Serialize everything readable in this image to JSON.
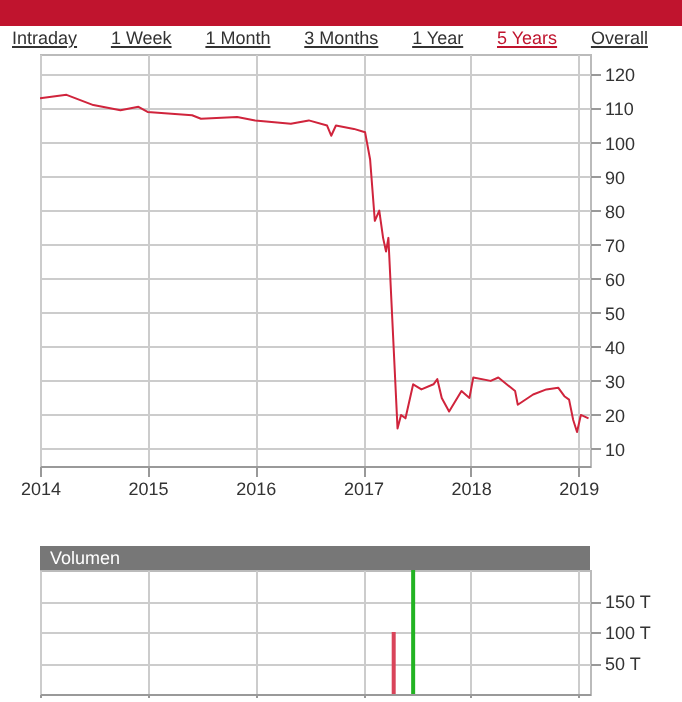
{
  "chart_data": [
    {
      "type": "line",
      "annotations": [
        "Intraday",
        "1 Week",
        "1 Month",
        "3 Months",
        "1 Year",
        "5 Years",
        "Overall"
      ],
      "x": [
        "2014-01-01",
        "2014-04-01",
        "2014-07-01",
        "2014-10-01",
        "2014-12-01",
        "2015-01-01",
        "2015-06-01",
        "2015-07-01",
        "2015-11-01",
        "2016-01-01",
        "2016-05-01",
        "2016-07-01",
        "2016-09-01",
        "2016-09-15",
        "2016-10-01",
        "2016-12-01",
        "2017-01-08",
        "2017-01-25",
        "2017-02-10",
        "2017-02-25",
        "2017-03-10",
        "2017-03-20",
        "2017-03-28",
        "2017-04-28",
        "2017-05-10",
        "2017-05-25",
        "2017-06-20",
        "2017-07-18",
        "2017-08-28",
        "2017-09-10",
        "2017-09-25",
        "2017-10-20",
        "2017-12-01",
        "2017-12-28",
        "2018-01-10",
        "2018-03-10",
        "2018-04-05",
        "2018-06-01",
        "2018-06-10",
        "2018-08-01",
        "2018-09-15",
        "2018-10-25",
        "2018-11-15",
        "2018-12-01",
        "2018-12-15",
        "2018-12-28",
        "2019-01-10",
        "2019-02-05"
      ],
      "series": [
        {
          "color": "#d0243c",
          "values": [
            113,
            114,
            111,
            109.5,
            110.5,
            109,
            108,
            107,
            107.5,
            106.5,
            105.5,
            106.5,
            105,
            102,
            105,
            104,
            103,
            95,
            77,
            80,
            72,
            68,
            72,
            16,
            20,
            19,
            29,
            27.5,
            29,
            30.5,
            25,
            21,
            27,
            25,
            31,
            30,
            31,
            27,
            23,
            26,
            27.5,
            28,
            25.5,
            24.5,
            18.5,
            15,
            20,
            19
          ]
        }
      ],
      "xlim": [
        "2014-01-01",
        "2019-02-10"
      ],
      "xticks": [
        "2014",
        "2015",
        "2016",
        "2017",
        "2018",
        "2019"
      ],
      "ylim": [
        5,
        126
      ],
      "yticks": [
        10,
        20,
        30,
        40,
        50,
        60,
        70,
        80,
        90,
        100,
        110,
        120
      ],
      "grid": true
    },
    {
      "type": "bar",
      "title": "Volumen",
      "x": [
        "2017-04-15",
        "2017-06-20"
      ],
      "values": [
        100,
        200
      ],
      "colors": [
        "#d9445a",
        "#22b322"
      ],
      "xlim": [
        "2014-01-01",
        "2019-02-10"
      ],
      "xticks": [
        "2014",
        "2015",
        "2016",
        "2017",
        "2018",
        "2019"
      ],
      "ylim": [
        0,
        200
      ],
      "yticks": [
        {
          "value": 50,
          "label": "50 T"
        },
        {
          "value": 100,
          "label": "100 T"
        },
        {
          "value": 150,
          "label": "150 T"
        }
      ],
      "grid": true,
      "tick_labels": "y"
    }
  ]
}
